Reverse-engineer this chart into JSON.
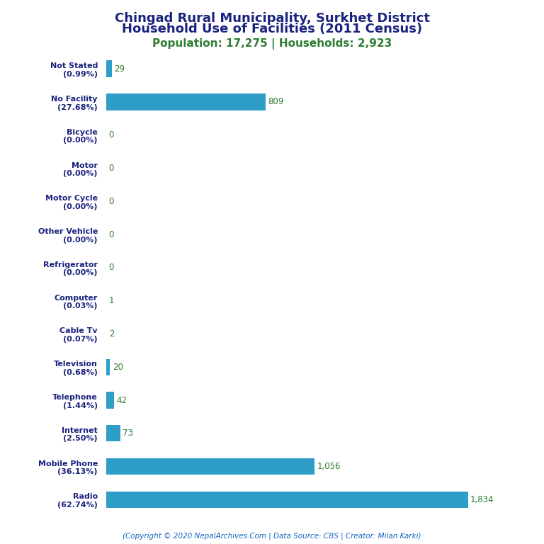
{
  "title_line1": "Chingad Rural Municipality, Surkhet District",
  "title_line2": "Household Use of Facilities (2011 Census)",
  "subtitle": "Population: 17,275 | Households: 2,923",
  "footer": "(Copyright © 2020 NepalArchives.Com | Data Source: CBS | Creator: Milan Karki)",
  "categories": [
    "Radio\n(62.74%)",
    "Mobile Phone\n(36.13%)",
    "Internet\n(2.50%)",
    "Telephone\n(1.44%)",
    "Television\n(0.68%)",
    "Cable Tv\n(0.07%)",
    "Computer\n(0.03%)",
    "Refrigerator\n(0.00%)",
    "Other Vehicle\n(0.00%)",
    "Motor Cycle\n(0.00%)",
    "Motor\n(0.00%)",
    "Bicycle\n(0.00%)",
    "No Facility\n(27.68%)",
    "Not Stated\n(0.99%)"
  ],
  "values": [
    1834,
    1056,
    73,
    42,
    20,
    2,
    1,
    0,
    0,
    0,
    0,
    0,
    809,
    29
  ],
  "value_labels": [
    "1,834",
    "1,056",
    "73",
    "42",
    "20",
    "2",
    "1",
    "0",
    "0",
    "0",
    "0",
    "0",
    "809",
    "29"
  ],
  "bar_color": "#2E9EC8",
  "title_color": "#1a237e",
  "subtitle_color": "#2e7d32",
  "value_color": "#2e7d32",
  "footer_color": "#1565c0",
  "background_color": "#ffffff",
  "xlim": [
    0,
    2150
  ]
}
